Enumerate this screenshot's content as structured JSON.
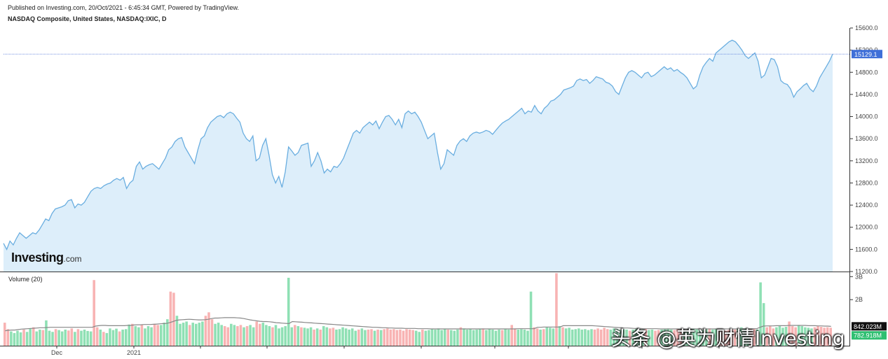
{
  "header": {
    "published": "Published on Investing.com, 20/Oct/2021 - 6:45:34 GMT, Powered by TradingView.",
    "symbol": "NASDAQ Composite, United States, NASDAQ:IXIC, D"
  },
  "logo": {
    "brand": "Investing",
    "suffix": ".com"
  },
  "watermark": "头条 @英为财情Investing",
  "colors": {
    "line": "#6aaee0",
    "area": "#ddeefa",
    "last_price_bg": "#3f6fd8",
    "volume_up": "#8fe0b4",
    "volume_down": "#f8b3b3",
    "volume_ma": "#888888"
  },
  "chart_data": [
    {
      "type": "area",
      "title": "NASDAQ Composite, United States, NASDAQ:IXIC, D",
      "x_tick_labels": [
        "Dec",
        "2021"
      ],
      "y_tick_labels": [
        "11200.0",
        "11600.0",
        "12000.0",
        "12400.0",
        "12800.0",
        "13200.0",
        "13600.0",
        "14000.0",
        "14400.0",
        "14800.0",
        "15200.0",
        "15600.0"
      ],
      "ylim": [
        11200,
        15600
      ],
      "last_price": "15129.1",
      "series": [
        {
          "values": [
            11710,
            11600,
            11750,
            11680,
            11800,
            11900,
            11850,
            11800,
            11850,
            11900,
            11880,
            11950,
            12050,
            12150,
            12120,
            12250,
            12330,
            12350,
            12370,
            12400,
            12480,
            12500,
            12350,
            12420,
            12400,
            12450,
            12550,
            12650,
            12700,
            12720,
            12700,
            12750,
            12780,
            12800,
            12850,
            12880,
            12850,
            12900,
            12700,
            12800,
            12850,
            13100,
            13180,
            13050,
            13100,
            13130,
            13150,
            13100,
            13050,
            13150,
            13250,
            13400,
            13450,
            13550,
            13600,
            13620,
            13450,
            13350,
            13250,
            13150,
            13400,
            13600,
            13650,
            13800,
            13900,
            13950,
            14000,
            14020,
            13980,
            14050,
            14080,
            14050,
            13970,
            13900,
            13700,
            13600,
            13550,
            13650,
            13200,
            13250,
            13480,
            13600,
            13300,
            12950,
            12800,
            12920,
            12720,
            13000,
            13450,
            13380,
            13300,
            13350,
            13480,
            13500,
            13520,
            13100,
            13200,
            13350,
            13200,
            12980,
            13050,
            13000,
            13100,
            13080,
            13150,
            13250,
            13400,
            13550,
            13700,
            13750,
            13700,
            13800,
            13850,
            13900,
            13850,
            13920,
            13780,
            13900,
            14000,
            14020,
            13950,
            13850,
            13950,
            13800,
            14050,
            14100,
            14050,
            14080,
            14000,
            13900,
            13750,
            13600,
            13650,
            13700,
            13350,
            13050,
            13150,
            13400,
            13350,
            13300,
            13480,
            13560,
            13600,
            13550,
            13650,
            13700,
            13720,
            13700,
            13720,
            13750,
            13730,
            13680,
            13750,
            13820,
            13880,
            13920,
            13950,
            14000,
            14050,
            14100,
            14150,
            14050,
            14100,
            14080,
            14200,
            14100,
            14050,
            14150,
            14200,
            14280,
            14300,
            14350,
            14400,
            14480,
            14500,
            14520,
            14550,
            14650,
            14680,
            14650,
            14670,
            14600,
            14650,
            14720,
            14700,
            14680,
            14620,
            14600,
            14550,
            14450,
            14400,
            14550,
            14700,
            14800,
            14830,
            14800,
            14750,
            14700,
            14780,
            14800,
            14720,
            14750,
            14800,
            14850,
            14900,
            14850,
            14880,
            14820,
            14850,
            14800,
            14760,
            14700,
            14600,
            14500,
            14550,
            14750,
            14900,
            14980,
            15050,
            15000,
            15150,
            15200,
            15250,
            15300,
            15350,
            15380,
            15350,
            15280,
            15200,
            15100,
            15050,
            15100,
            15150,
            15000,
            14700,
            14750,
            14900,
            15050,
            15030,
            14900,
            14650,
            14600,
            14580,
            14500,
            14350,
            14450,
            14500,
            14560,
            14600,
            14500,
            14450,
            14550,
            14700,
            14800,
            14900,
            15000,
            15129
          ]
        }
      ]
    },
    {
      "type": "bar",
      "title": "Volume (20)",
      "y_tick_labels": [
        "2B",
        "3B"
      ],
      "ylim": [
        0,
        3.1
      ],
      "volume_ma_last": "842.023M",
      "volume_last": "782.918M",
      "series": [
        {
          "name": "Volume",
          "values": [
            1.0,
            0.72,
            0.62,
            0.55,
            0.65,
            0.58,
            0.7,
            0.6,
            0.75,
            0.8,
            0.62,
            0.7,
            0.68,
            1.1,
            0.65,
            0.6,
            0.72,
            0.68,
            0.62,
            0.7,
            0.66,
            0.75,
            0.6,
            0.72,
            0.65,
            0.7,
            0.64,
            0.62,
            2.85,
            0.8,
            0.7,
            0.6,
            0.55,
            0.75,
            0.68,
            0.74,
            0.62,
            0.7,
            0.72,
            0.92,
            0.95,
            0.85,
            0.8,
            0.9,
            0.75,
            0.85,
            0.8,
            0.95,
            0.9,
            0.9,
            1.0,
            1.15,
            2.35,
            2.3,
            1.3,
            0.95,
            1.0,
            1.05,
            0.9,
            1.0,
            0.95,
            1.0,
            1.05,
            1.3,
            1.45,
            1.15,
            0.95,
            1.0,
            0.9,
            0.85,
            0.8,
            0.95,
            0.9,
            0.85,
            0.9,
            0.8,
            0.85,
            0.9,
            0.8,
            1.05,
            0.95,
            1.0,
            0.9,
            0.85,
            0.8,
            0.9,
            0.75,
            0.8,
            0.85,
            2.95,
            0.8,
            0.9,
            0.85,
            0.8,
            0.78,
            0.75,
            0.8,
            0.7,
            0.75,
            0.7,
            0.85,
            0.8,
            0.75,
            0.78,
            0.7,
            0.72,
            0.8,
            0.75,
            0.7,
            0.75,
            0.65,
            0.7,
            0.75,
            0.68,
            0.7,
            0.72,
            0.65,
            0.7,
            0.68,
            0.72,
            0.75,
            0.7,
            0.72,
            0.68,
            0.7,
            0.65,
            0.72,
            0.7,
            0.68,
            0.65,
            0.6,
            0.7,
            0.65,
            0.68,
            0.72,
            0.7,
            0.75,
            0.68,
            0.72,
            0.7,
            0.68,
            0.65,
            0.7,
            0.8,
            0.75,
            0.7,
            0.72,
            0.68,
            0.7,
            0.72,
            0.75,
            0.68,
            0.72,
            0.7,
            0.65,
            0.7,
            0.68,
            0.72,
            0.7,
            0.9,
            0.75,
            0.7,
            0.72,
            0.7,
            0.65,
            2.35,
            0.8,
            0.75,
            0.7,
            0.72,
            0.8,
            0.78,
            0.75,
            3.15,
            0.85,
            0.8,
            0.75,
            0.78,
            0.7,
            0.72,
            0.75,
            0.7,
            0.72,
            0.68,
            0.72,
            0.7,
            0.75,
            0.7,
            0.78,
            0.72,
            0.7,
            0.75,
            0.72,
            0.68,
            0.72,
            0.7,
            0.65,
            0.7,
            0.72,
            0.68,
            0.7,
            0.72,
            0.68,
            0.7,
            0.65,
            0.68,
            0.7,
            0.72,
            0.75,
            0.7,
            0.68,
            0.72,
            0.7,
            0.65,
            0.68,
            0.7,
            0.75,
            0.72,
            0.7,
            0.68,
            0.72,
            0.75,
            0.7,
            0.72,
            0.68,
            0.7,
            0.65,
            0.68,
            0.72,
            0.7,
            0.75,
            0.8,
            0.75,
            0.7,
            0.72,
            0.75,
            0.7,
            2.75,
            1.85,
            0.8,
            0.85,
            0.75,
            0.8,
            0.85,
            0.78,
            0.82,
            1.05,
            0.85,
            0.8,
            0.9,
            0.85,
            0.8,
            0.78,
            0.75,
            0.8,
            0.85,
            0.82,
            0.78,
            0.8,
            0.78
          ],
          "direction": [
            0,
            0,
            1,
            1,
            1,
            1,
            0,
            1,
            1,
            0,
            1,
            1,
            0,
            1,
            1,
            1,
            0,
            1,
            1,
            1,
            0,
            0,
            1,
            0,
            1,
            1,
            1,
            1,
            0,
            0,
            1,
            0,
            1,
            1,
            1,
            1,
            0,
            1,
            1,
            1,
            0,
            1,
            1,
            0,
            1,
            1,
            1,
            0,
            0,
            1,
            1,
            1,
            0,
            0,
            1,
            1,
            1,
            1,
            0,
            1,
            1,
            1,
            1,
            0,
            0,
            0,
            1,
            1,
            1,
            0,
            0,
            1,
            1,
            0,
            0,
            1,
            0,
            1,
            1,
            0,
            0,
            1,
            1,
            1,
            0,
            1,
            1,
            1,
            1,
            1,
            1,
            0,
            1,
            0,
            1,
            1,
            1,
            0,
            1,
            0,
            1,
            1,
            0,
            0,
            1,
            1,
            1,
            1,
            1,
            1,
            1,
            0,
            1,
            1,
            0,
            0,
            1,
            0,
            1,
            0,
            0,
            0,
            0,
            0,
            0,
            0,
            0,
            0,
            0,
            1,
            1,
            0,
            1,
            1,
            1,
            1,
            1,
            1,
            1,
            0,
            1,
            1,
            1,
            0,
            1,
            1,
            1,
            1,
            1,
            1,
            0,
            1,
            1,
            1,
            1,
            1,
            0,
            1,
            1,
            0,
            0,
            1,
            1,
            1,
            1,
            1,
            0,
            0,
            1,
            0,
            1,
            1,
            1,
            0,
            1,
            0,
            1,
            1,
            1,
            1,
            1,
            1,
            1,
            1,
            1,
            0,
            0,
            0,
            0,
            0,
            1,
            1,
            1,
            1,
            1,
            1,
            0,
            1,
            1,
            1,
            1,
            0,
            1,
            1,
            0,
            0,
            1,
            1,
            1,
            1,
            0,
            0,
            0,
            1,
            1,
            1,
            1,
            1,
            1,
            1,
            1,
            0,
            1,
            1,
            0,
            0,
            0,
            0,
            0,
            0,
            1,
            1,
            1,
            1,
            0,
            0,
            1,
            1,
            1,
            0,
            0,
            0,
            1,
            1,
            1,
            1,
            0,
            0,
            0,
            1,
            1,
            1,
            1,
            1
          ]
        },
        {
          "name": "Volume (20)",
          "values": [
            0.65,
            0.67,
            0.68,
            0.68,
            0.7,
            0.72,
            0.73,
            0.74,
            0.75,
            0.76,
            0.77,
            0.78,
            0.78,
            0.79,
            0.8,
            0.8,
            0.8,
            0.8,
            0.8,
            0.8,
            0.8,
            0.8,
            0.8,
            0.8,
            0.8,
            0.8,
            0.8,
            0.8,
            0.85,
            0.87,
            0.88,
            0.88,
            0.87,
            0.87,
            0.87,
            0.87,
            0.87,
            0.87,
            0.88,
            0.88,
            0.9,
            0.91,
            0.91,
            0.92,
            0.92,
            0.92,
            0.93,
            0.94,
            0.95,
            0.96,
            0.97,
            1.0,
            1.05,
            1.1,
            1.12,
            1.13,
            1.14,
            1.15,
            1.14,
            1.13,
            1.12,
            1.12,
            1.13,
            1.15,
            1.18,
            1.2,
            1.2,
            1.21,
            1.22,
            1.22,
            1.22,
            1.22,
            1.21,
            1.2,
            1.18,
            1.15,
            1.12,
            1.1,
            1.08,
            1.06,
            1.05,
            1.05,
            1.04,
            1.02,
            1.0,
            0.99,
            0.98,
            0.97,
            0.96,
            1.05,
            1.04,
            1.03,
            1.02,
            1.01,
            1.0,
            0.99,
            0.98,
            0.97,
            0.96,
            0.95,
            0.94,
            0.93,
            0.92,
            0.91,
            0.9,
            0.89,
            0.88,
            0.87,
            0.86,
            0.85,
            0.84,
            0.83,
            0.82,
            0.81,
            0.8,
            0.8,
            0.79,
            0.78,
            0.78,
            0.77,
            0.77,
            0.76,
            0.76,
            0.76,
            0.75,
            0.75,
            0.75,
            0.75,
            0.74,
            0.74,
            0.74,
            0.74,
            0.73,
            0.73,
            0.73,
            0.73,
            0.73,
            0.73,
            0.73,
            0.73,
            0.73,
            0.73,
            0.73,
            0.73,
            0.73,
            0.73,
            0.73,
            0.73,
            0.73,
            0.73,
            0.73,
            0.73,
            0.73,
            0.73,
            0.73,
            0.73,
            0.73,
            0.73,
            0.73,
            0.74,
            0.74,
            0.74,
            0.74,
            0.74,
            0.74,
            0.8,
            0.8,
            0.81,
            0.81,
            0.81,
            0.81,
            0.81,
            0.81,
            0.87,
            0.87,
            0.87,
            0.87,
            0.87,
            0.87,
            0.87,
            0.87,
            0.87,
            0.87,
            0.86,
            0.85,
            0.84,
            0.83,
            0.82,
            0.81,
            0.8,
            0.79,
            0.78,
            0.77,
            0.77,
            0.76,
            0.75,
            0.75,
            0.75,
            0.74,
            0.74,
            0.74,
            0.74,
            0.74,
            0.73,
            0.73,
            0.73,
            0.73,
            0.73,
            0.73,
            0.73,
            0.73,
            0.73,
            0.73,
            0.73,
            0.73,
            0.73,
            0.73,
            0.73,
            0.73,
            0.73,
            0.73,
            0.73,
            0.73,
            0.73,
            0.73,
            0.73,
            0.73,
            0.73,
            0.74,
            0.74,
            0.74,
            0.74,
            0.74,
            0.74,
            0.8,
            0.85,
            0.86,
            0.86,
            0.86,
            0.87,
            0.87,
            0.87,
            0.87,
            0.88,
            0.88,
            0.88,
            0.88,
            0.88,
            0.88,
            0.87,
            0.87,
            0.87,
            0.86,
            0.86,
            0.85,
            0.85,
            0.84
          ]
        }
      ]
    }
  ]
}
